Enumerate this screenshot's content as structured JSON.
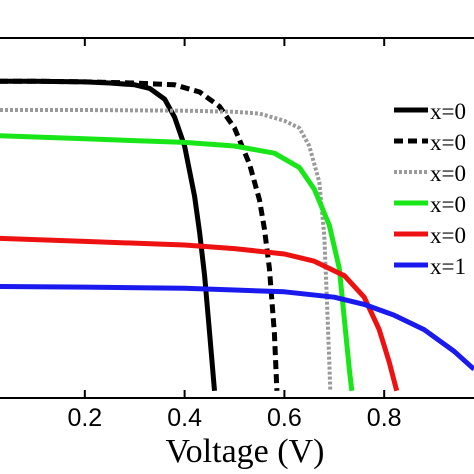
{
  "chart_data": {
    "type": "line",
    "xlabel": "Voltage (V)",
    "ylabel": "",
    "xlim": [
      0.03,
      0.98
    ],
    "ylim": [
      0,
      1.0
    ],
    "xticks": [
      {
        "value": 0.2,
        "label": "0.2"
      },
      {
        "value": 0.4,
        "label": "0.4"
      },
      {
        "value": 0.6,
        "label": "0.6"
      },
      {
        "value": 0.8,
        "label": "0.8"
      }
    ],
    "legend_position": "top-right",
    "series": [
      {
        "name": "x=0",
        "color": "#000000",
        "style": "solid",
        "points": [
          [
            0.0,
            0.88
          ],
          [
            0.1,
            0.88
          ],
          [
            0.2,
            0.878
          ],
          [
            0.25,
            0.875
          ],
          [
            0.3,
            0.87
          ],
          [
            0.33,
            0.86
          ],
          [
            0.36,
            0.83
          ],
          [
            0.38,
            0.78
          ],
          [
            0.4,
            0.7
          ],
          [
            0.42,
            0.56
          ],
          [
            0.43,
            0.46
          ],
          [
            0.44,
            0.34
          ],
          [
            0.45,
            0.18
          ],
          [
            0.46,
            0.02
          ]
        ]
      },
      {
        "name": "x=0",
        "color": "#000000",
        "style": "dashed",
        "points": [
          [
            0.0,
            0.88
          ],
          [
            0.1,
            0.88
          ],
          [
            0.2,
            0.878
          ],
          [
            0.3,
            0.875
          ],
          [
            0.38,
            0.87
          ],
          [
            0.43,
            0.85
          ],
          [
            0.47,
            0.81
          ],
          [
            0.5,
            0.75
          ],
          [
            0.53,
            0.65
          ],
          [
            0.55,
            0.55
          ],
          [
            0.56,
            0.47
          ],
          [
            0.57,
            0.36
          ],
          [
            0.58,
            0.18
          ],
          [
            0.585,
            0.02
          ]
        ]
      },
      {
        "name": "x=0",
        "color": "#9a9a9a",
        "style": "dotted",
        "points": [
          [
            0.0,
            0.8
          ],
          [
            0.2,
            0.8
          ],
          [
            0.4,
            0.798
          ],
          [
            0.5,
            0.795
          ],
          [
            0.55,
            0.79
          ],
          [
            0.6,
            0.77
          ],
          [
            0.63,
            0.75
          ],
          [
            0.65,
            0.7
          ],
          [
            0.67,
            0.6
          ],
          [
            0.68,
            0.45
          ],
          [
            0.685,
            0.28
          ],
          [
            0.69,
            0.1
          ],
          [
            0.692,
            0.02
          ]
        ]
      },
      {
        "name": "x=0",
        "color": "#19e619",
        "style": "solid",
        "points": [
          [
            0.0,
            0.73
          ],
          [
            0.2,
            0.72
          ],
          [
            0.4,
            0.71
          ],
          [
            0.5,
            0.7
          ],
          [
            0.58,
            0.68
          ],
          [
            0.63,
            0.64
          ],
          [
            0.66,
            0.58
          ],
          [
            0.69,
            0.48
          ],
          [
            0.71,
            0.36
          ],
          [
            0.72,
            0.22
          ],
          [
            0.73,
            0.08
          ],
          [
            0.735,
            0.02
          ]
        ]
      },
      {
        "name": "x=0",
        "color": "#ee1111",
        "style": "solid",
        "points": [
          [
            0.0,
            0.445
          ],
          [
            0.2,
            0.435
          ],
          [
            0.4,
            0.425
          ],
          [
            0.5,
            0.415
          ],
          [
            0.6,
            0.4
          ],
          [
            0.66,
            0.38
          ],
          [
            0.72,
            0.34
          ],
          [
            0.76,
            0.28
          ],
          [
            0.79,
            0.19
          ],
          [
            0.81,
            0.1
          ],
          [
            0.825,
            0.02
          ]
        ]
      },
      {
        "name": "x=1",
        "color": "#1a1aee",
        "style": "solid",
        "points": [
          [
            0.0,
            0.31
          ],
          [
            0.2,
            0.308
          ],
          [
            0.4,
            0.305
          ],
          [
            0.5,
            0.3
          ],
          [
            0.6,
            0.295
          ],
          [
            0.7,
            0.28
          ],
          [
            0.76,
            0.26
          ],
          [
            0.82,
            0.23
          ],
          [
            0.88,
            0.19
          ],
          [
            0.94,
            0.13
          ],
          [
            0.98,
            0.08
          ]
        ]
      }
    ]
  }
}
